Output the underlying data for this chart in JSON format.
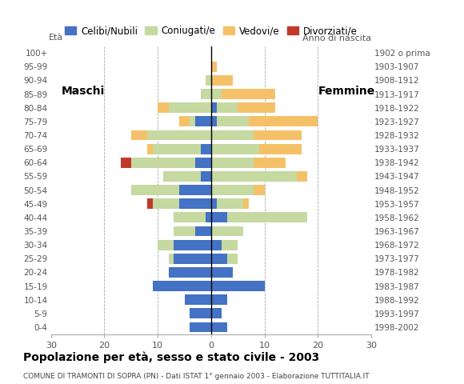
{
  "age_groups": [
    "0-4",
    "5-9",
    "10-14",
    "15-19",
    "20-24",
    "25-29",
    "30-34",
    "35-39",
    "40-44",
    "45-49",
    "50-54",
    "55-59",
    "60-64",
    "65-69",
    "70-74",
    "75-79",
    "80-84",
    "85-89",
    "90-94",
    "95-99",
    "100+"
  ],
  "birth_years": [
    "1998-2002",
    "1993-1997",
    "1988-1992",
    "1983-1987",
    "1978-1982",
    "1973-1977",
    "1968-1972",
    "1963-1967",
    "1958-1962",
    "1953-1957",
    "1948-1952",
    "1943-1947",
    "1938-1942",
    "1933-1937",
    "1928-1932",
    "1923-1927",
    "1918-1922",
    "1913-1917",
    "1908-1912",
    "1903-1907",
    "1902 o prima"
  ],
  "males": {
    "celibe": [
      4,
      4,
      5,
      11,
      8,
      7,
      7,
      3,
      1,
      6,
      6,
      2,
      3,
      2,
      0,
      3,
      0,
      0,
      0,
      0,
      0
    ],
    "coniugato": [
      0,
      0,
      0,
      0,
      0,
      1,
      3,
      4,
      6,
      5,
      9,
      7,
      12,
      9,
      12,
      1,
      8,
      2,
      1,
      0,
      0
    ],
    "vedovo": [
      0,
      0,
      0,
      0,
      0,
      0,
      0,
      0,
      0,
      0,
      0,
      0,
      0,
      1,
      3,
      2,
      2,
      0,
      0,
      0,
      0
    ],
    "divorziato": [
      0,
      0,
      0,
      0,
      0,
      0,
      0,
      0,
      0,
      1,
      0,
      0,
      2,
      0,
      0,
      0,
      0,
      0,
      0,
      0,
      0
    ]
  },
  "females": {
    "celibe": [
      3,
      2,
      3,
      10,
      4,
      3,
      2,
      0,
      3,
      1,
      0,
      0,
      0,
      0,
      0,
      1,
      1,
      0,
      0,
      0,
      0
    ],
    "coniugato": [
      0,
      0,
      0,
      0,
      0,
      2,
      3,
      6,
      15,
      5,
      8,
      16,
      8,
      9,
      8,
      6,
      4,
      2,
      0,
      0,
      0
    ],
    "vedovo": [
      0,
      0,
      0,
      0,
      0,
      0,
      0,
      0,
      0,
      1,
      2,
      2,
      6,
      8,
      9,
      13,
      7,
      10,
      4,
      1,
      0
    ],
    "divorziato": [
      0,
      0,
      0,
      0,
      0,
      0,
      0,
      0,
      0,
      0,
      0,
      0,
      0,
      0,
      0,
      0,
      0,
      0,
      0,
      0,
      0
    ]
  },
  "colors": {
    "celibe": "#4472C4",
    "coniugato": "#C5D9A0",
    "vedovo": "#F5C168",
    "divorziato": "#C0392B"
  },
  "legend_labels": [
    "Celibi/Nubili",
    "Coniugati/e",
    "Vedovi/e",
    "Divorziati/e"
  ],
  "title": "Popolazione per età, sesso e stato civile - 2003",
  "subtitle": "COMUNE DI TRAMONTI DI SOPRA (PN) - Dati ISTAT 1° gennaio 2003 - Elaborazione TUTTITALIA.IT",
  "label_eta": "Età",
  "label_maschi": "Maschi",
  "label_femmine": "Femmine",
  "label_anno": "Anno di nascita",
  "xlim": 30,
  "background_color": "#ffffff"
}
